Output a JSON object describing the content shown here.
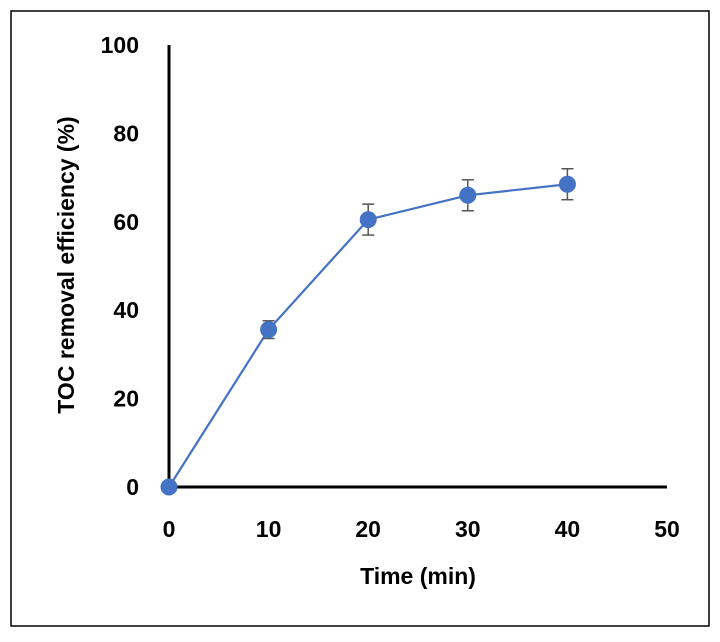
{
  "chart_data": {
    "type": "line",
    "title": "",
    "xlabel": "Time (min)",
    "ylabel": "TOC removal efficiency (%)",
    "xlim": [
      0,
      50
    ],
    "ylim": [
      0,
      100
    ],
    "x_ticks": [
      0,
      10,
      20,
      30,
      40,
      50
    ],
    "y_ticks": [
      0,
      20,
      40,
      60,
      80,
      100
    ],
    "grid": false,
    "legend": "none",
    "series": [
      {
        "x": [
          0,
          10,
          20,
          30,
          40
        ],
        "y": [
          0,
          35.6,
          60.5,
          66.0,
          68.5
        ],
        "error": [
          0,
          2.0,
          3.5,
          3.5,
          3.5
        ],
        "color": "#4472C4"
      }
    ]
  }
}
